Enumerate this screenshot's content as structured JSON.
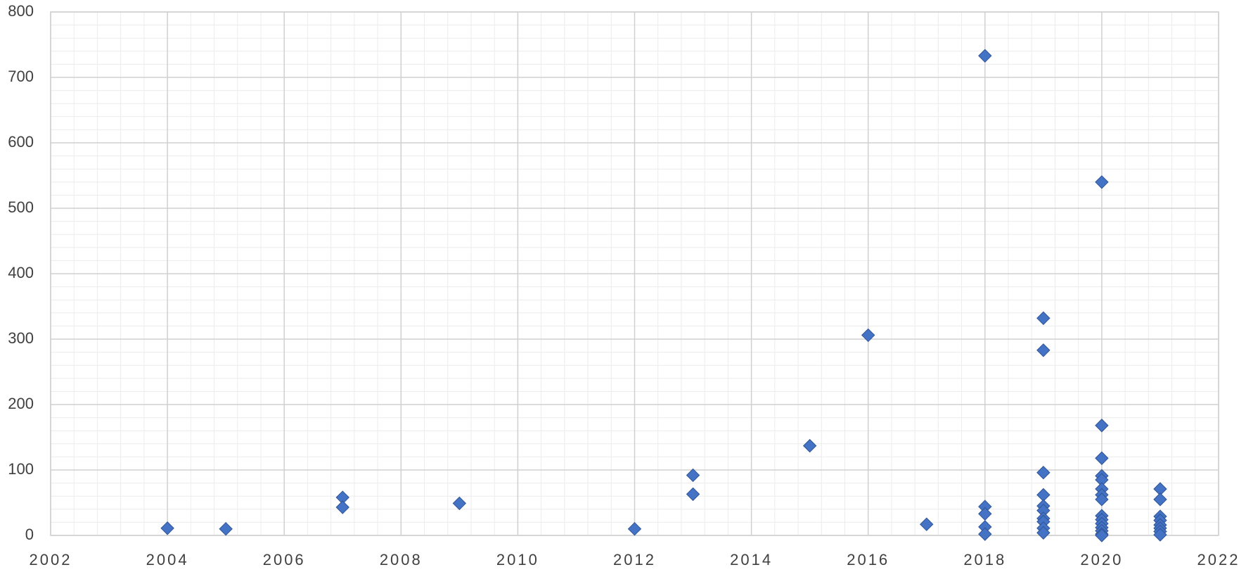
{
  "chart_data": {
    "type": "scatter",
    "series": [
      {
        "color": "#4472c4",
        "x": [
          2004,
          2005,
          2007,
          2007,
          2009,
          2012,
          2013,
          2013,
          2015,
          2016,
          2017,
          2018,
          2018,
          2018,
          2018,
          2018,
          2019,
          2019,
          2019,
          2019,
          2019,
          2019,
          2019,
          2019,
          2019,
          2019,
          2020,
          2020,
          2020,
          2020,
          2020,
          2020,
          2020,
          2020,
          2020,
          2020,
          2020,
          2020,
          2020,
          2020,
          2020,
          2021,
          2021,
          2021,
          2021,
          2021,
          2021,
          2021,
          2021
        ],
        "values": [
          11,
          10,
          58,
          43,
          49,
          10,
          92,
          63,
          137,
          306,
          17,
          733,
          44,
          33,
          13,
          2,
          332,
          283,
          96,
          62,
          45,
          38,
          26,
          21,
          11,
          4,
          540,
          168,
          118,
          91,
          85,
          71,
          62,
          55,
          30,
          24,
          18,
          12,
          7,
          2,
          0,
          71,
          55,
          29,
          23,
          16,
          11,
          6,
          1
        ]
      }
    ],
    "xlim": [
      2002,
      2022
    ],
    "xticks": [
      2002,
      2004,
      2006,
      2008,
      2010,
      2012,
      2014,
      2016,
      2018,
      2020,
      2022
    ],
    "ylim": [
      0,
      800
    ],
    "yticks": [
      0,
      100,
      200,
      300,
      400,
      500,
      600,
      700,
      800
    ],
    "grid": true,
    "minor_grid": true
  }
}
